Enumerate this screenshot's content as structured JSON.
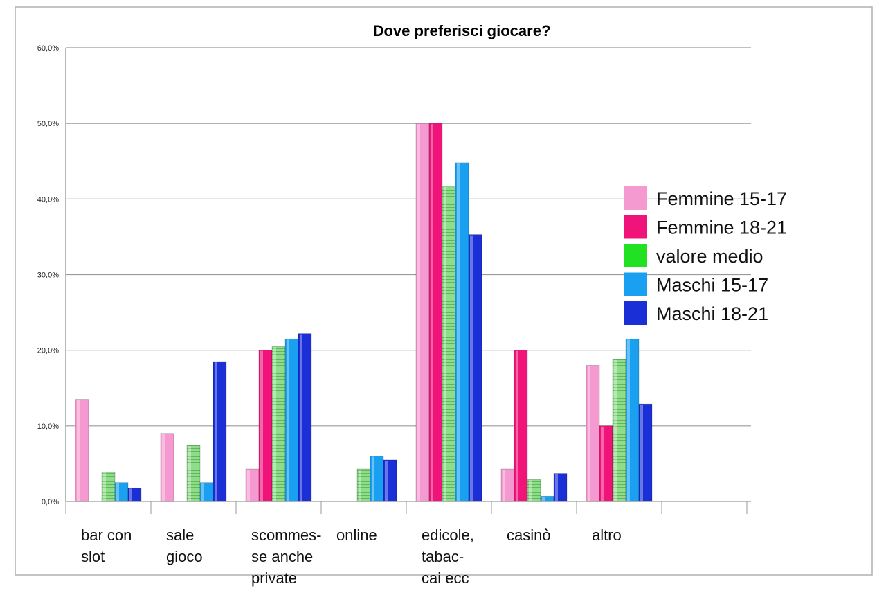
{
  "chart_data": {
    "type": "bar",
    "title": "Dove preferisci giocare?",
    "xlabel": "",
    "ylabel": "",
    "ylim": [
      0,
      60
    ],
    "yticks": [
      "0,0%",
      "10,0%",
      "20,0%",
      "30,0%",
      "40,0%",
      "50,0%",
      "60,0%"
    ],
    "grid": true,
    "legend_position": "right",
    "categories": [
      [
        "bar con",
        "slot"
      ],
      [
        "sale",
        "gioco"
      ],
      [
        "scommes-",
        "se anche",
        "private"
      ],
      [
        "online"
      ],
      [
        "edicole,",
        "tabac-",
        "cai ecc"
      ],
      [
        "casinò"
      ],
      [
        "altro"
      ]
    ],
    "series": [
      {
        "name": "Femmine 15-17",
        "color": "#f59ad0",
        "values": [
          13.5,
          9.0,
          4.3,
          null,
          50.0,
          4.3,
          18.0
        ]
      },
      {
        "name": "Femmine 18-21",
        "color": "#f0147a",
        "values": [
          null,
          null,
          20.0,
          null,
          50.0,
          20.0,
          10.0
        ]
      },
      {
        "name": "valore medio",
        "color": "#7fd67f",
        "values": [
          3.9,
          7.4,
          20.5,
          4.3,
          41.7,
          2.9,
          18.8
        ]
      },
      {
        "name": "Maschi 15-17",
        "color": "#1aa0f0",
        "values": [
          2.5,
          2.5,
          21.5,
          6.0,
          44.8,
          0.7,
          21.5
        ]
      },
      {
        "name": "Maschi 18-21",
        "color": "#1a2fd6",
        "values": [
          1.8,
          18.5,
          22.2,
          5.5,
          35.3,
          3.7,
          12.9
        ]
      }
    ]
  }
}
